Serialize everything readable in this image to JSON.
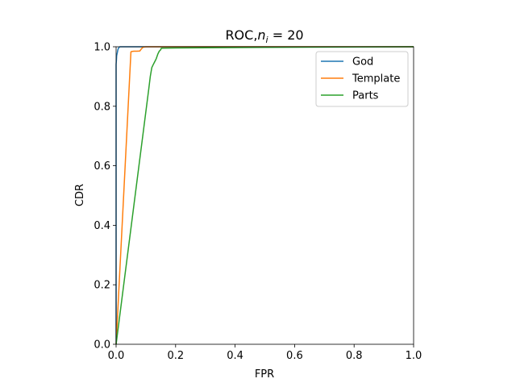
{
  "chart_data": {
    "type": "line",
    "title": "ROC,n_i = 20",
    "title_parts": {
      "prefix": "ROC,",
      "var": "n",
      "sub": "i",
      "suffix": " = 20"
    },
    "xlabel": "FPR",
    "ylabel": "CDR",
    "xlim": [
      0,
      1
    ],
    "ylim": [
      0,
      1
    ],
    "xticks": [
      "0.0",
      "0.2",
      "0.4",
      "0.6",
      "0.8",
      "1.0"
    ],
    "yticks": [
      "0.0",
      "0.2",
      "0.4",
      "0.6",
      "0.8",
      "1.0"
    ],
    "grid": false,
    "legend_position": "top-right",
    "series": [
      {
        "name": "God",
        "color": "#1f77b4",
        "x": [
          0,
          0.0,
          0.001,
          0.002,
          0.004,
          0.006,
          0.008,
          0.01,
          0.013,
          1.0
        ],
        "y": [
          0,
          0.94,
          0.955,
          0.97,
          0.98,
          0.99,
          0.995,
          0.998,
          1.0,
          1.0
        ]
      },
      {
        "name": "Template",
        "color": "#ff7f0e",
        "x": [
          0,
          0.05,
          0.052,
          0.06,
          0.07,
          0.08,
          0.085,
          0.09,
          0.1,
          0.13,
          1.0
        ],
        "y": [
          0,
          0.983,
          0.984,
          0.985,
          0.985,
          0.986,
          0.993,
          0.998,
          1.0,
          1.0,
          1.0
        ]
      },
      {
        "name": "Parts",
        "color": "#2ca02c",
        "x": [
          0,
          0.11,
          0.115,
          0.12,
          0.125,
          0.13,
          0.135,
          0.14,
          0.145,
          0.15,
          0.152,
          0.2,
          0.5,
          1.0
        ],
        "y": [
          0,
          0.86,
          0.9,
          0.93,
          0.94,
          0.95,
          0.96,
          0.975,
          0.985,
          0.99,
          0.995,
          0.996,
          0.998,
          1.0
        ]
      }
    ]
  }
}
